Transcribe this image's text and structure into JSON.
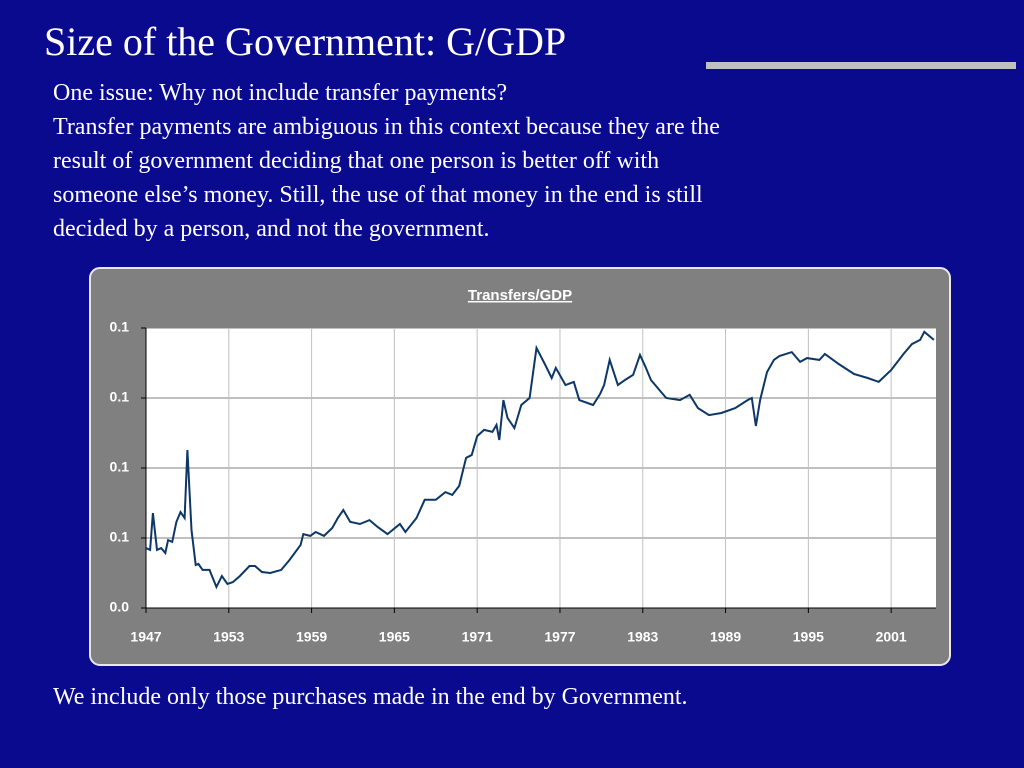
{
  "title": "Size of the Government: G/GDP",
  "text": [
    "One issue: Why not include transfer payments?",
    "Transfer payments are ambiguous in this context because they are the",
    "result of government deciding that one person is better off with",
    "someone else’s money. Still, the use of that money in the end is still",
    "decided by a person, and not the government."
  ],
  "footer": "We include only those purchases made in the end by Government.",
  "chart_data": {
    "type": "line",
    "title": "Transfers/GDP",
    "x": [
      1947.0,
      1947.3,
      1947.5,
      1947.8,
      1948.1,
      1948.4,
      1948.6,
      1948.9,
      1949.2,
      1949.5,
      1949.8,
      1950.0,
      1950.3,
      1950.6,
      1950.8,
      1951.1,
      1951.6,
      1952.1,
      1952.5,
      1952.9,
      1953.3,
      1953.8,
      1954.5,
      1954.9,
      1955.4,
      1956.0,
      1956.8,
      1957.4,
      1958.2,
      1958.4,
      1958.9,
      1959.3,
      1959.9,
      1960.5,
      1960.9,
      1961.3,
      1961.8,
      1962.5,
      1963.2,
      1963.8,
      1964.5,
      1965.4,
      1965.8,
      1966.6,
      1967.2,
      1968.0,
      1968.7,
      1969.2,
      1969.7,
      1970.2,
      1970.6,
      1971.0,
      1971.5,
      1972.1,
      1972.4,
      1972.6,
      1972.9,
      1973.2,
      1973.7,
      1974.2,
      1974.8,
      1975.3,
      1975.9,
      1976.4,
      1976.7,
      1977.4,
      1978.0,
      1978.4,
      1979.4,
      1979.9,
      1980.2,
      1980.6,
      1981.2,
      1981.7,
      1982.3,
      1982.8,
      1983.2,
      1983.6,
      1984.7,
      1985.7,
      1986.4,
      1987.0,
      1987.8,
      1988.7,
      1989.7,
      1990.6,
      1990.9,
      1991.2,
      1991.5,
      1992.0,
      1992.5,
      1992.9,
      1993.8,
      1994.4,
      1994.9,
      1995.8,
      1996.2,
      1997.2,
      1998.3,
      1999.3,
      2000.1,
      2001.0,
      2001.9,
      2002.5,
      2003.1,
      2003.4,
      2004.1
    ],
    "series": [
      {
        "name": "Transfers/GDP",
        "color": "#0d3766",
        "values": [
          0.0571,
          0.0566,
          0.0671,
          0.0566,
          0.0571,
          0.0557,
          0.0594,
          0.0589,
          0.0646,
          0.0674,
          0.0657,
          0.0851,
          0.0623,
          0.0523,
          0.0526,
          0.0509,
          0.0509,
          0.046,
          0.0491,
          0.0469,
          0.0474,
          0.0491,
          0.052,
          0.052,
          0.0503,
          0.05,
          0.0509,
          0.0537,
          0.058,
          0.0611,
          0.0606,
          0.0617,
          0.0606,
          0.0629,
          0.0657,
          0.068,
          0.0646,
          0.064,
          0.0651,
          0.0631,
          0.0611,
          0.064,
          0.0617,
          0.0657,
          0.0709,
          0.0709,
          0.0731,
          0.0723,
          0.0749,
          0.0829,
          0.0837,
          0.0891,
          0.0909,
          0.0903,
          0.0923,
          0.088,
          0.0994,
          0.0943,
          0.0914,
          0.098,
          0.1,
          0.1143,
          0.1097,
          0.1057,
          0.1086,
          0.1037,
          0.1046,
          0.0994,
          0.098,
          0.1011,
          0.1037,
          0.1109,
          0.1037,
          0.1051,
          0.1066,
          0.1123,
          0.1089,
          0.1051,
          0.1,
          0.0994,
          0.1009,
          0.0971,
          0.0951,
          0.0957,
          0.0971,
          0.0994,
          0.1,
          0.092,
          0.0994,
          0.1074,
          0.1109,
          0.112,
          0.1131,
          0.1103,
          0.1114,
          0.1109,
          0.1126,
          0.1097,
          0.1069,
          0.1057,
          0.1046,
          0.108,
          0.1126,
          0.1154,
          0.1166,
          0.1189,
          0.1166
        ]
      }
    ],
    "xlim": [
      1947,
      2004.25
    ],
    "xticks": [
      1947,
      1953,
      1959,
      1965,
      1971,
      1977,
      1983,
      1989,
      1995,
      2001
    ],
    "ylim": [
      0.04,
      0.12
    ],
    "yticks": [
      {
        "value": 0.04,
        "label": "0.0"
      },
      {
        "value": 0.06,
        "label": "0.1"
      },
      {
        "value": 0.08,
        "label": "0.1"
      },
      {
        "value": 0.1,
        "label": "0.1"
      },
      {
        "value": 0.12,
        "label": "0.1"
      }
    ],
    "grid": true
  }
}
